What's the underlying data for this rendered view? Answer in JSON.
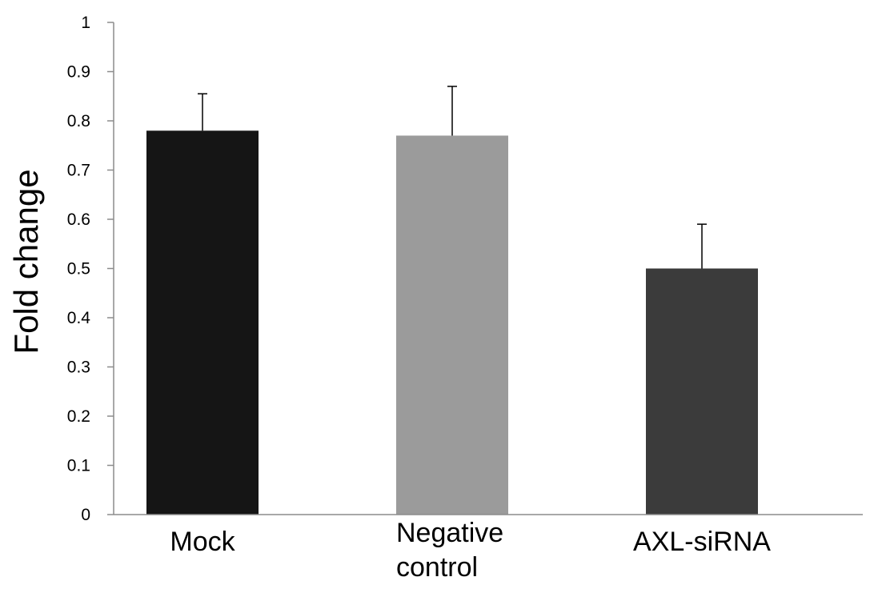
{
  "chart_data": {
    "type": "bar",
    "title": "",
    "xlabel": "",
    "ylabel": "Fold change",
    "ylim": [
      0,
      1
    ],
    "yticks": [
      0,
      0.1,
      0.2,
      0.3,
      0.4,
      0.5,
      0.6,
      0.7,
      0.8,
      0.9,
      1
    ],
    "ytick_labels": [
      "0",
      "0.1",
      "0.2",
      "0.3",
      "0.4",
      "0.5",
      "0.6",
      "0.7",
      "0.8",
      "0.9",
      "1"
    ],
    "grid": false,
    "legend": "none",
    "categories": [
      {
        "lines": [
          "Mock"
        ]
      },
      {
        "lines": [
          "Negative",
          "control"
        ]
      },
      {
        "lines": [
          "AXL-siRNA"
        ]
      }
    ],
    "values": [
      0.78,
      0.77,
      0.5
    ],
    "error_bars": [
      0.075,
      0.1,
      0.09
    ],
    "colors": [
      "#151515",
      "#9b9b9b",
      "#3b3b3b"
    ]
  }
}
